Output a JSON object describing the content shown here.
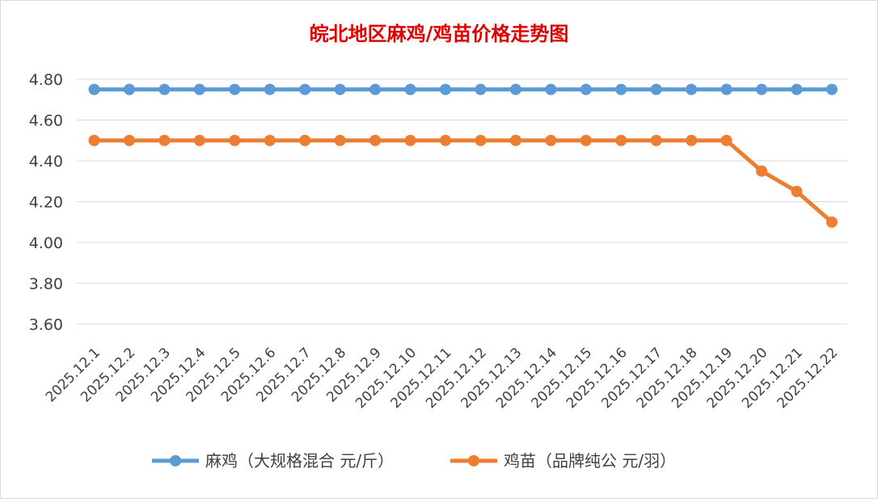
{
  "chart_data": {
    "type": "line",
    "title": "皖北地区麻鸡/鸡苗价格走势图",
    "xlabel": "",
    "ylabel": "",
    "ylim": [
      3.6,
      4.8
    ],
    "yticks": [
      "3.60",
      "3.80",
      "4.00",
      "4.20",
      "4.40",
      "4.60",
      "4.80"
    ],
    "grid": true,
    "legend_position": "bottom",
    "categories": [
      "2025.12.1",
      "2025.12.2",
      "2025.12.3",
      "2025.12.4",
      "2025.12.5",
      "2025.12.6",
      "2025.12.7",
      "2025.12.8",
      "2025.12.9",
      "2025.12.10",
      "2025.12.11",
      "2025.12.12",
      "2025.12.13",
      "2025.12.14",
      "2025.12.15",
      "2025.12.16",
      "2025.12.17",
      "2025.12.18",
      "2025.12.19",
      "2025.12.20",
      "2025.12.21",
      "2025.12.22"
    ],
    "series": [
      {
        "name": "麻鸡（大规格混合 元/斤）",
        "color": "#5b9bd5",
        "values": [
          4.75,
          4.75,
          4.75,
          4.75,
          4.75,
          4.75,
          4.75,
          4.75,
          4.75,
          4.75,
          4.75,
          4.75,
          4.75,
          4.75,
          4.75,
          4.75,
          4.75,
          4.75,
          4.75,
          4.75,
          4.75,
          4.75
        ]
      },
      {
        "name": "鸡苗（品牌纯公 元/羽）",
        "color": "#ed7d31",
        "values": [
          4.5,
          4.5,
          4.5,
          4.5,
          4.5,
          4.5,
          4.5,
          4.5,
          4.5,
          4.5,
          4.5,
          4.5,
          4.5,
          4.5,
          4.5,
          4.5,
          4.5,
          4.5,
          4.5,
          4.35,
          4.25,
          4.1
        ]
      }
    ]
  }
}
